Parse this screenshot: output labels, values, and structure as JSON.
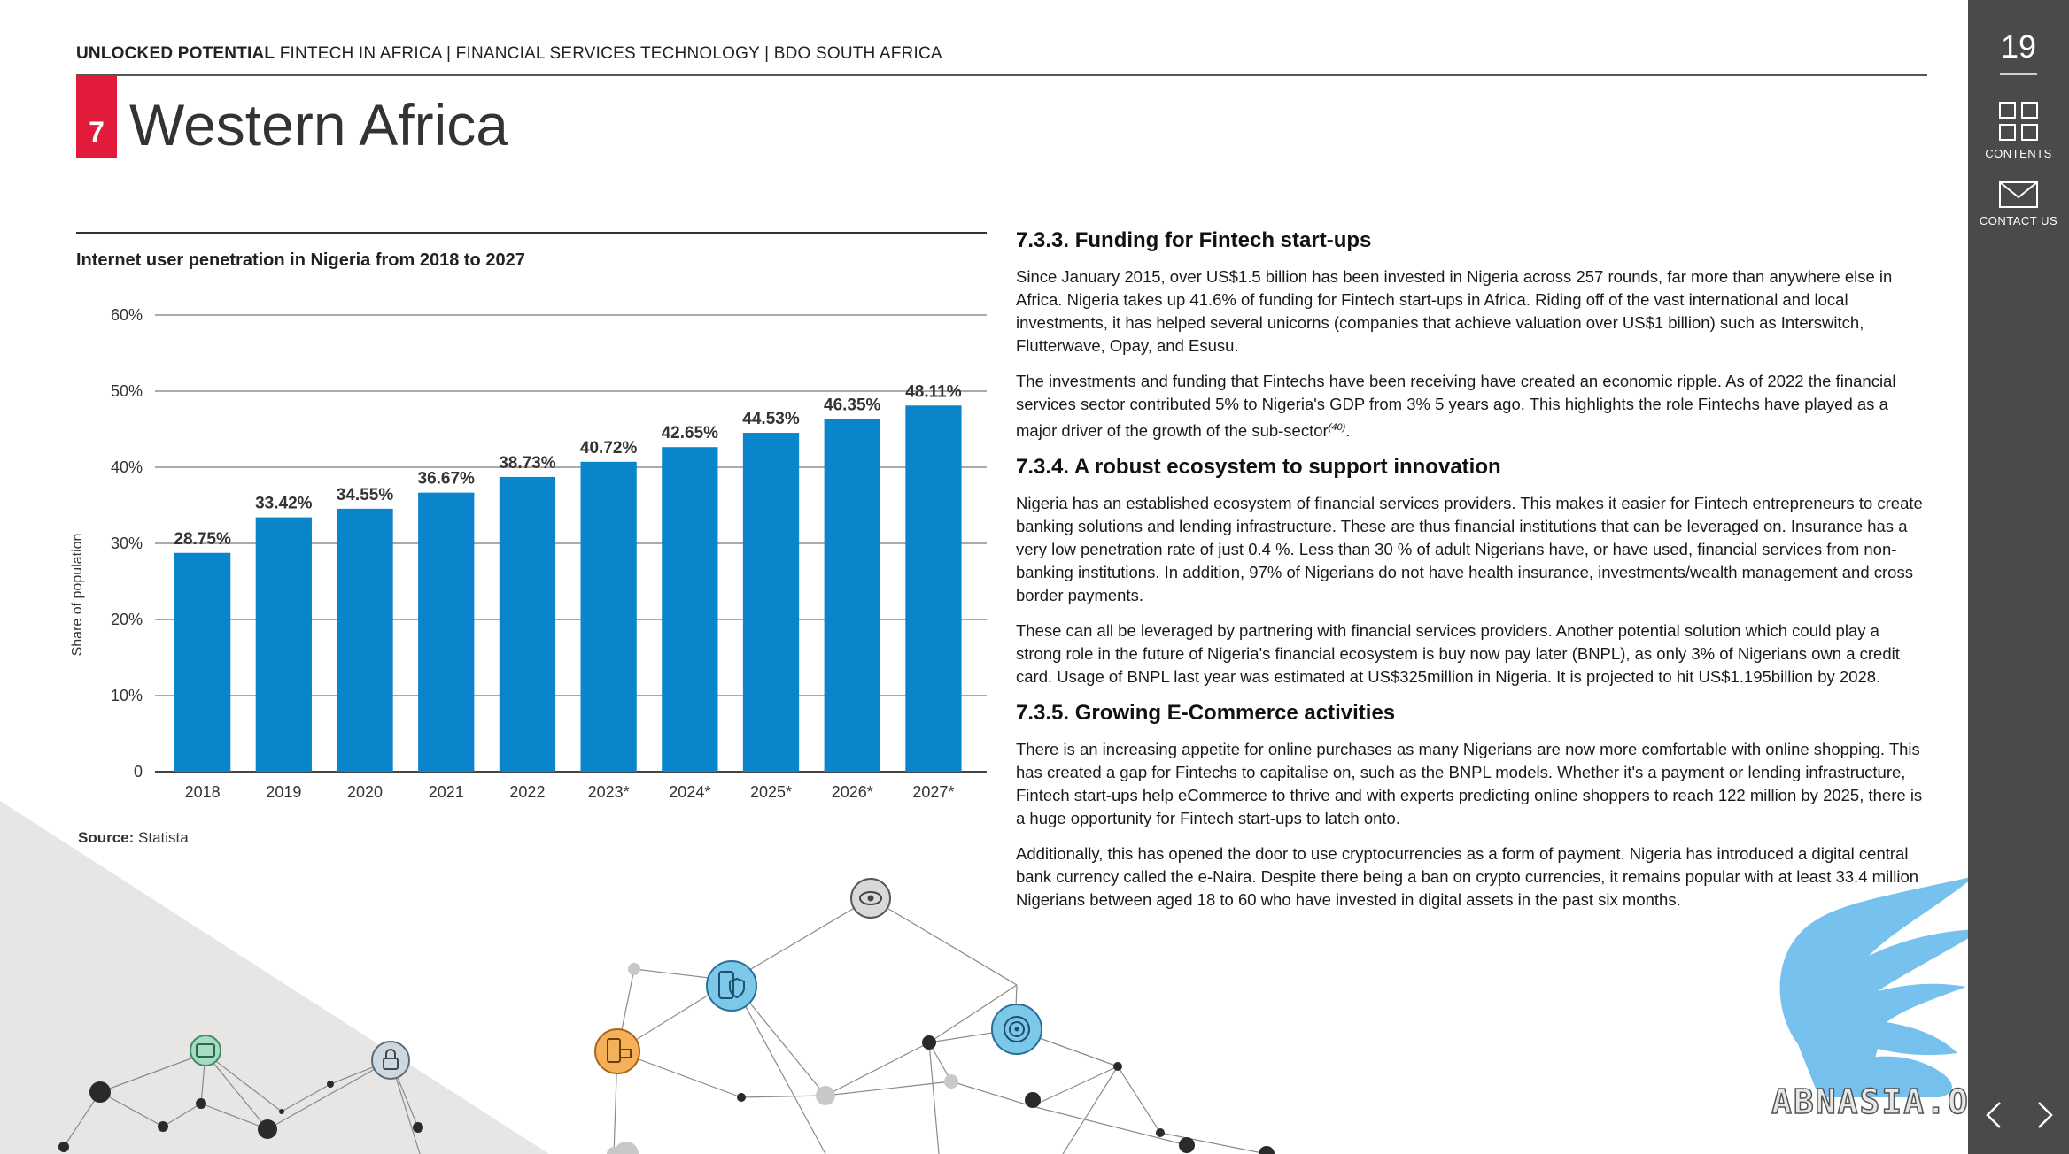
{
  "header": {
    "brand": "UNLOCKED POTENTIAL",
    "subtitle": "FINTECH IN AFRICA | FINANCIAL SERVICES TECHNOLOGY | BDO SOUTH AFRICA"
  },
  "section": {
    "number": "7",
    "title": "Western Africa"
  },
  "colors": {
    "accent": "#e31b3b",
    "bar": "#0a85cc",
    "sidebar": "#4a4a4c"
  },
  "chart_title": "Internet user penetration in Nigeria from 2018 to 2027",
  "chart_data": {
    "type": "bar",
    "categories": [
      "2018",
      "2019",
      "2020",
      "2021",
      "2022",
      "2023*",
      "2024*",
      "2025*",
      "2026*",
      "2027*"
    ],
    "values": [
      28.75,
      33.42,
      34.55,
      36.67,
      38.73,
      40.72,
      42.65,
      44.53,
      46.35,
      48.11
    ],
    "value_labels": [
      "28.75%",
      "33.42%",
      "34.55%",
      "36.67%",
      "38.73%",
      "40.72%",
      "42.65%",
      "44.53%",
      "46.35%",
      "48.11%"
    ],
    "ylabel": "Share of population",
    "ylim": [
      0,
      60
    ],
    "yticks": [
      0,
      10,
      20,
      30,
      40,
      50,
      60
    ],
    "ytick_labels": [
      "0",
      "10%",
      "20%",
      "30%",
      "40%",
      "50%",
      "60%"
    ],
    "grid": true
  },
  "source": {
    "label": "Source:",
    "value": "Statista"
  },
  "content": {
    "h1": "7.3.3. Funding for Fintech start-ups",
    "p1": "Since January 2015, over US$1.5 billion has been invested in Nigeria across 257 rounds, far more than anywhere else in Africa. Nigeria takes up 41.6% of funding for Fintech start-ups in Africa. Riding off of the vast international and local investments, it has helped several unicorns (companies that achieve valuation over US$1 billion) such as Interswitch, Flutterwave, Opay, and Esusu.",
    "p2": "The investments and funding that Fintechs have been receiving have created an economic ripple. As of 2022 the financial services sector contributed 5% to Nigeria's GDP from 3% 5 years ago. This highlights the role Fintechs have played as a major driver of the growth of the sub-sector",
    "p2_ref": "(40)",
    "p2_end": ".",
    "h2": "7.3.4. A robust ecosystem to support innovation",
    "p3": "Nigeria has an established ecosystem of financial services providers. This makes it easier for Fintech entrepreneurs to create banking solutions and lending infrastructure. These are thus financial institutions that can be leveraged on. Insurance has a very low penetration rate of just 0.4 %. Less than 30 % of adult Nigerians have, or have used, financial services from non-banking institutions. In addition, 97% of Nigerians do not have health insurance, investments/wealth management and cross border payments.",
    "p4": "These can all be leveraged by partnering with financial services providers. Another potential solution which could play a strong role in the future of Nigeria's financial ecosystem is buy now pay later (BNPL), as only 3% of Nigerians own a credit card. Usage of BNPL last year was estimated at US$325million in Nigeria. It is projected to hit US$1.195billion by 2028.",
    "h3": "7.3.5. Growing E-Commerce activities",
    "p5": "There is an increasing appetite for online purchases as many Nigerians are now more comfortable with online shopping. This has created a gap for Fintechs to capitalise on, such as the BNPL models. Whether it's a payment or lending infrastructure, Fintech start-ups help eCommerce to thrive and with experts predicting online shoppers to reach 122 million by 2025, there is a huge opportunity for Fintech start-ups to latch onto.",
    "p6": "Additionally, this has opened the door to use cryptocurrencies as a form of payment. Nigeria has introduced a digital central bank currency called the e-Naira. Despite there being a ban on crypto currencies, it remains popular with at least 33.4 million Nigerians between aged 18 to 60 who have invested in digital assets in the past six months."
  },
  "sidebar": {
    "page_number": "19",
    "contents_label": "CONTENTS",
    "contact_label": "CONTACT US"
  },
  "watermark": "ABNASIA.ORG",
  "icons": [
    "grid-icon",
    "envelope-icon",
    "chevron-left-icon",
    "chevron-right-icon",
    "eye-icon",
    "phone-shield-icon",
    "fingerprint-icon",
    "mobile-payment-icon",
    "lock-icon",
    "card-icon"
  ]
}
